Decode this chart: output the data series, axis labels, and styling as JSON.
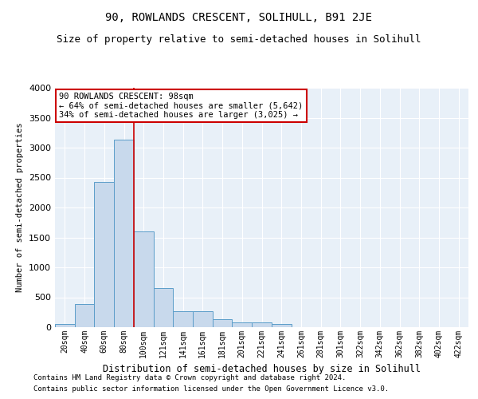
{
  "title": "90, ROWLANDS CRESCENT, SOLIHULL, B91 2JE",
  "subtitle": "Size of property relative to semi-detached houses in Solihull",
  "xlabel": "Distribution of semi-detached houses by size in Solihull",
  "ylabel": "Number of semi-detached properties",
  "footer_line1": "Contains HM Land Registry data © Crown copyright and database right 2024.",
  "footer_line2": "Contains public sector information licensed under the Open Government Licence v3.0.",
  "categories": [
    "20sqm",
    "40sqm",
    "60sqm",
    "80sqm",
    "100sqm",
    "121sqm",
    "141sqm",
    "161sqm",
    "181sqm",
    "201sqm",
    "221sqm",
    "241sqm",
    "261sqm",
    "281sqm",
    "301sqm",
    "322sqm",
    "342sqm",
    "362sqm",
    "382sqm",
    "402sqm",
    "422sqm"
  ],
  "values": [
    50,
    390,
    2430,
    3130,
    1600,
    650,
    270,
    270,
    130,
    80,
    80,
    60,
    0,
    0,
    0,
    0,
    0,
    0,
    0,
    0,
    0
  ],
  "bar_color": "#c8d9ec",
  "bar_edge_color": "#5b9dc9",
  "vline_x_index": 4,
  "annotation_text_line1": "90 ROWLANDS CRESCENT: 98sqm",
  "annotation_text_line2": "← 64% of semi-detached houses are smaller (5,642)",
  "annotation_text_line3": "34% of semi-detached houses are larger (3,025) →",
  "annotation_box_color": "#ffffff",
  "annotation_box_edge": "#cc0000",
  "vline_color": "#cc0000",
  "ylim": [
    0,
    4000
  ],
  "yticks": [
    0,
    500,
    1000,
    1500,
    2000,
    2500,
    3000,
    3500,
    4000
  ],
  "bg_color": "#e8f0f8",
  "title_fontsize": 10,
  "subtitle_fontsize": 9,
  "xlabel_fontsize": 8.5,
  "ylabel_fontsize": 7.5,
  "tick_fontsize": 7,
  "annot_fontsize": 7.5,
  "footer_fontsize": 6.5
}
